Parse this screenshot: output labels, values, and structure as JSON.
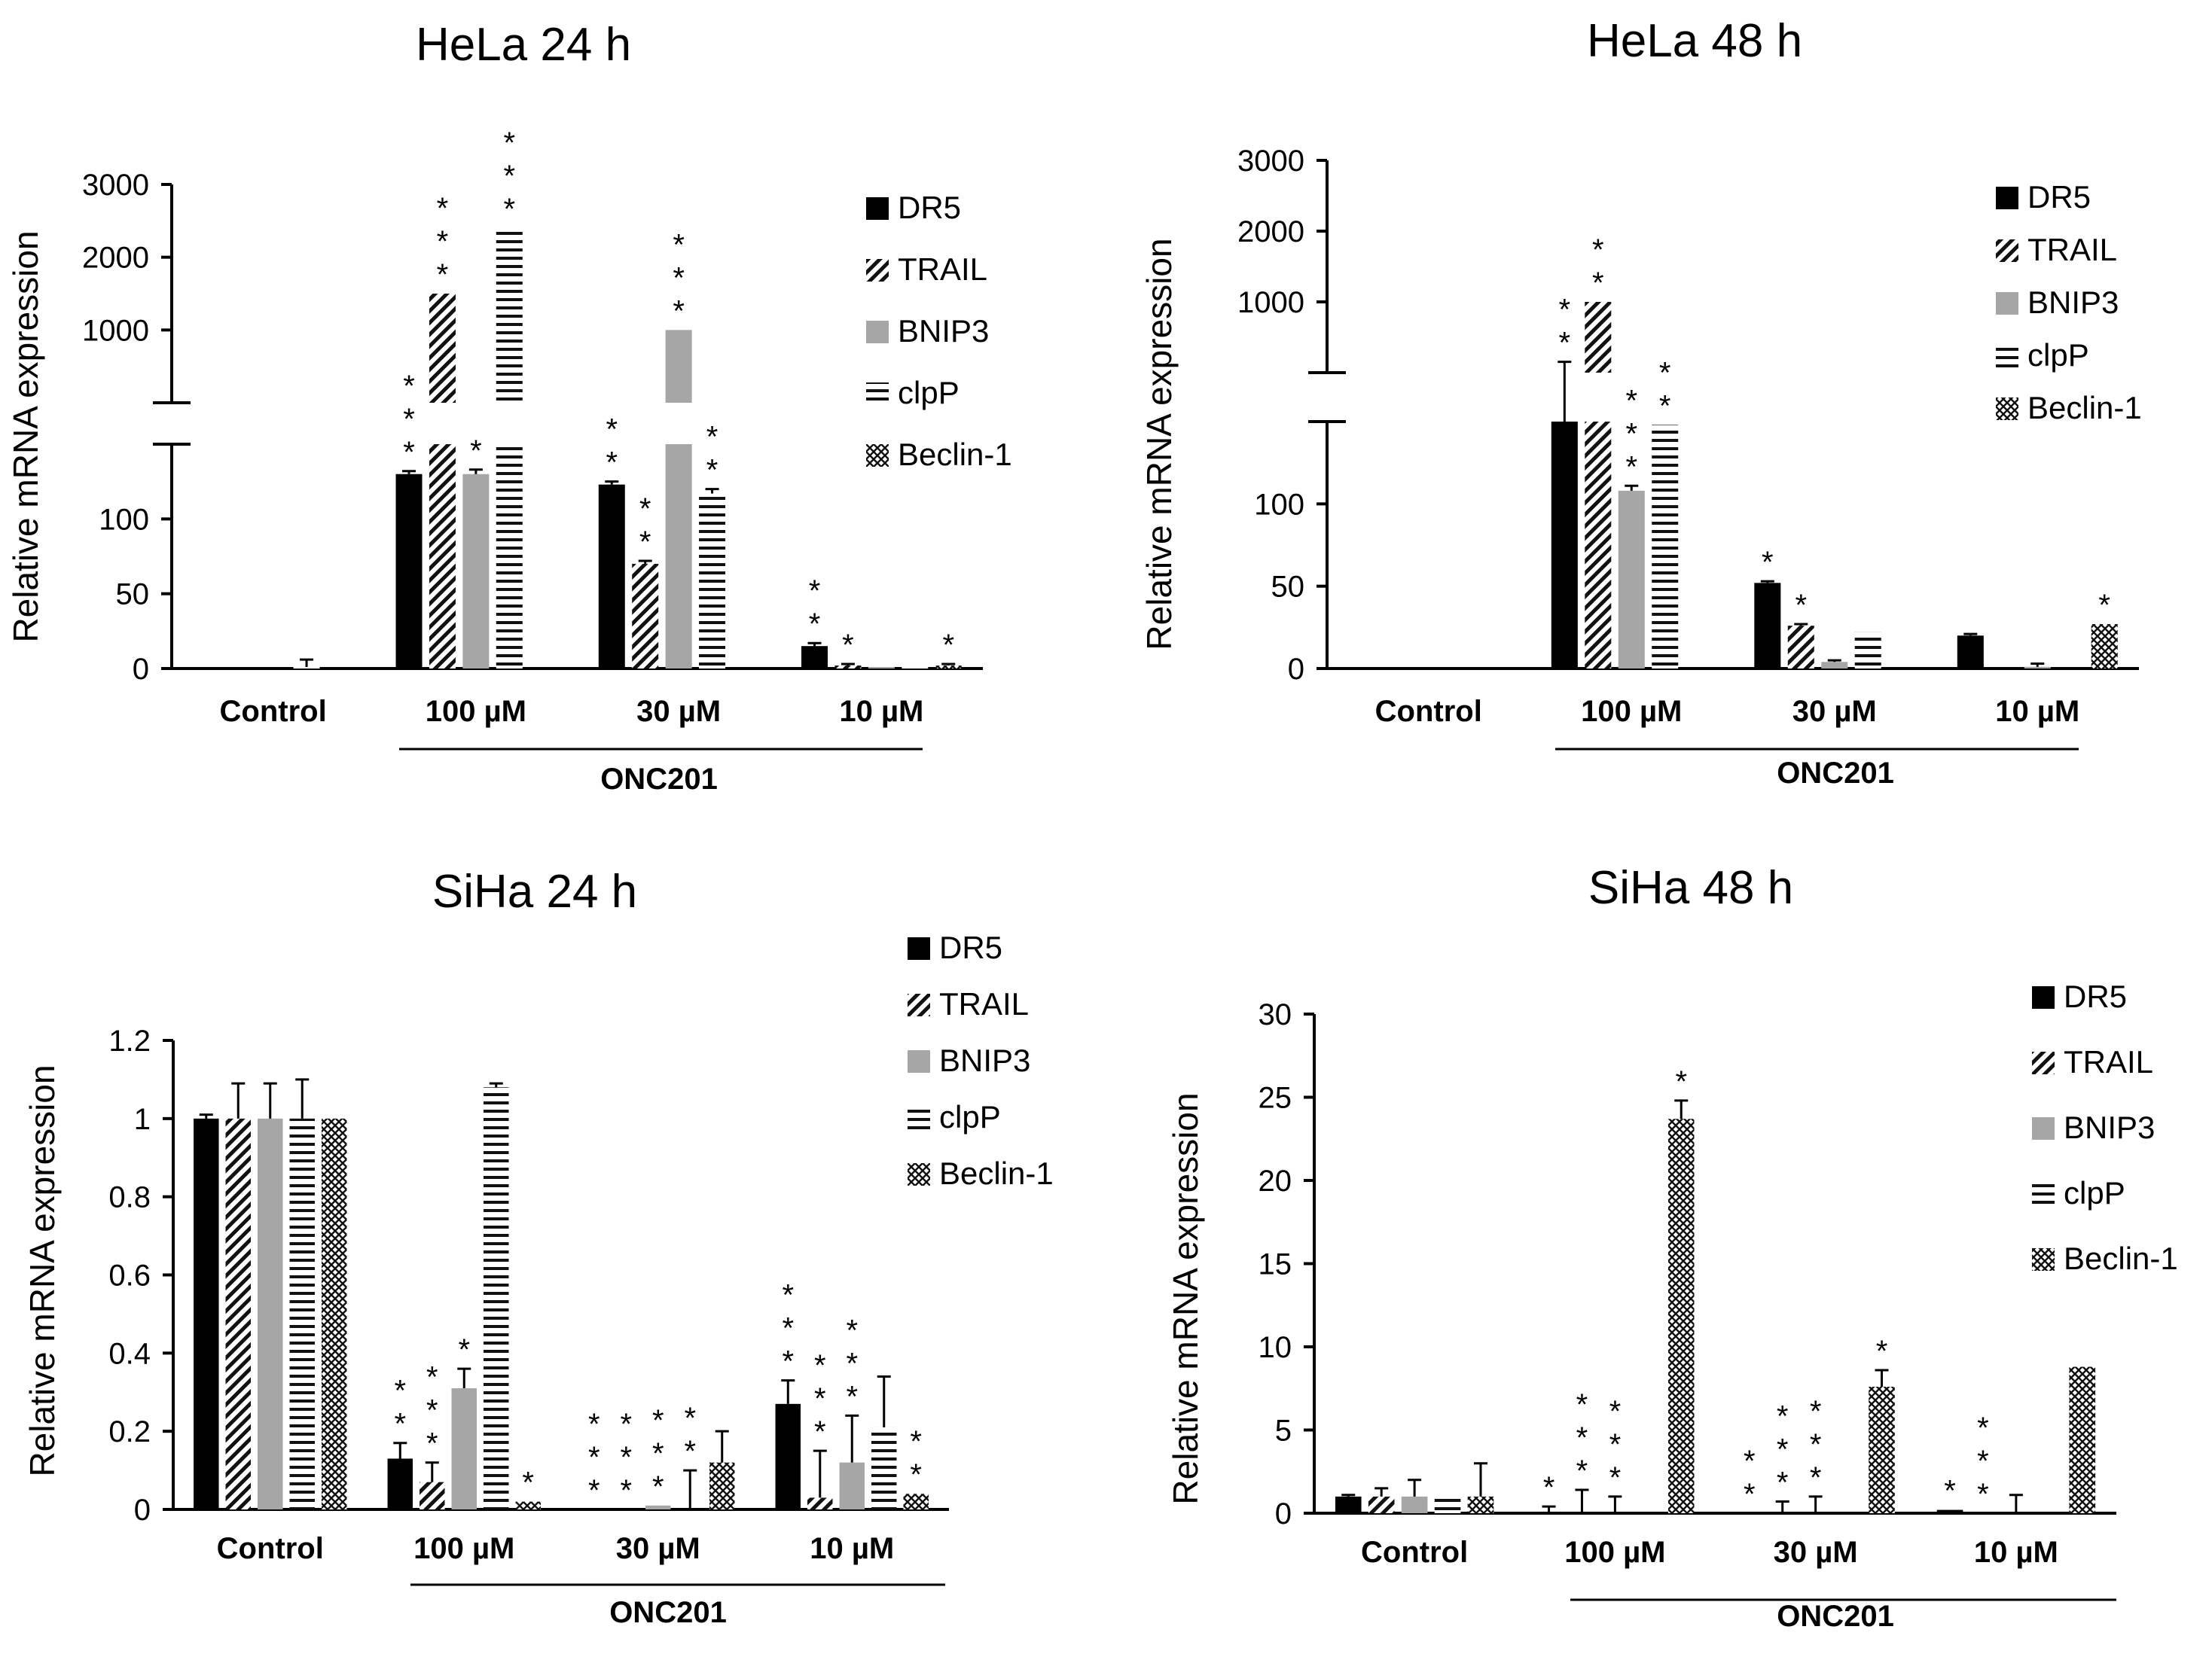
{
  "chart_data": [
    {
      "type": "bar",
      "title": "HeLa 24 h",
      "ylabel": "Relative mRNA expression",
      "xlabel": "",
      "broken_axis": true,
      "upper_ticks": [
        "1000",
        "2000",
        "3000"
      ],
      "lower_ticks": [
        "0",
        "50",
        "100"
      ],
      "categories": [
        "Control",
        "100 µM",
        "30 µM",
        "10 µM"
      ],
      "group_label": "ONC201",
      "series": [
        {
          "name": "DR5",
          "values": [
            1,
            130,
            123,
            15
          ],
          "errors": [
            0,
            2,
            2,
            2
          ],
          "stars": [
            0,
            3,
            2,
            2
          ]
        },
        {
          "name": "TRAIL",
          "values": [
            0,
            1500,
            70,
            2
          ],
          "errors": [
            0,
            0,
            2,
            1
          ],
          "stars": [
            0,
            3,
            2,
            1
          ]
        },
        {
          "name": "BNIP3",
          "values": [
            0,
            130,
            1000,
            1
          ],
          "errors": [
            0,
            3,
            0,
            0
          ],
          "stars": [
            0,
            1,
            3,
            0
          ]
        },
        {
          "name": "clpP",
          "values": [
            1,
            2400,
            117,
            1
          ],
          "errors": [
            5,
            0,
            3,
            0
          ],
          "stars": [
            0,
            3,
            2,
            0
          ]
        },
        {
          "name": "Beclin-1",
          "values": [
            0,
            0,
            0,
            2
          ],
          "errors": [
            0,
            0,
            0,
            1
          ],
          "stars": [
            0,
            0,
            0,
            1
          ]
        }
      ],
      "legend": [
        "DR5",
        "TRAIL",
        "BNIP3",
        "clpP",
        "Beclin-1"
      ],
      "legend_position": "right"
    },
    {
      "type": "bar",
      "title": "HeLa 48 h",
      "ylabel": "Relative mRNA expression",
      "xlabel": "",
      "broken_axis": true,
      "upper_ticks": [
        "1000",
        "2000",
        "3000"
      ],
      "lower_ticks": [
        "0",
        "50",
        "100"
      ],
      "categories": [
        "Control",
        "100 µM",
        "30 µM",
        "10 µM"
      ],
      "group_label": "ONC201",
      "series": [
        {
          "name": "DR5",
          "values": [
            0,
            150,
            52,
            20
          ],
          "errors": [
            0,
            3,
            1,
            1
          ],
          "stars": [
            0,
            2,
            1,
            0
          ]
        },
        {
          "name": "TRAIL",
          "values": [
            0,
            1000,
            26,
            0
          ],
          "errors": [
            0,
            0,
            1,
            0
          ],
          "stars": [
            0,
            2,
            1,
            0
          ]
        },
        {
          "name": "BNIP3",
          "values": [
            0,
            108,
            4,
            1
          ],
          "errors": [
            0,
            3,
            1,
            2
          ],
          "stars": [
            0,
            3,
            0,
            0
          ]
        },
        {
          "name": "clpP",
          "values": [
            0,
            148,
            22,
            0
          ],
          "errors": [
            0,
            0,
            0,
            0
          ],
          "stars": [
            0,
            2,
            0,
            0
          ]
        },
        {
          "name": "Beclin-1",
          "values": [
            0,
            0,
            0,
            27
          ],
          "errors": [
            0,
            0,
            0,
            0
          ],
          "stars": [
            0,
            0,
            0,
            1
          ]
        }
      ],
      "legend": [
        "DR5",
        "TRAIL",
        "BNIP3",
        "clpP",
        "Beclin-1"
      ],
      "legend_position": "right"
    },
    {
      "type": "bar",
      "title": "SiHa 24 h",
      "ylabel": "Relative mRNA expression",
      "xlabel": "",
      "ylim": [
        0,
        1.2
      ],
      "yticks": [
        "0",
        "0.2",
        "0.4",
        "0.6",
        "0.8",
        "1",
        "1.2"
      ],
      "categories": [
        "Control",
        "100 µM",
        "30 µM",
        "10 µM"
      ],
      "group_label": "ONC201",
      "series": [
        {
          "name": "DR5",
          "values": [
            1.0,
            0.13,
            0.0,
            0.27
          ],
          "errors": [
            0.01,
            0.04,
            0.0,
            0.06
          ],
          "stars": [
            0,
            2,
            3,
            3
          ]
        },
        {
          "name": "TRAIL",
          "values": [
            1.0,
            0.07,
            0.0,
            0.03
          ],
          "errors": [
            0.09,
            0.05,
            0.0,
            0.12
          ],
          "stars": [
            0,
            3,
            3,
            3
          ]
        },
        {
          "name": "BNIP3",
          "values": [
            1.0,
            0.31,
            0.01,
            0.12
          ],
          "errors": [
            0.09,
            0.05,
            0.0,
            0.12
          ],
          "stars": [
            0,
            1,
            3,
            3
          ]
        },
        {
          "name": "clpP",
          "values": [
            1.0,
            1.08,
            0.0,
            0.21
          ],
          "errors": [
            0.1,
            0.01,
            0.1,
            0.13
          ],
          "stars": [
            0,
            0,
            2,
            0
          ]
        },
        {
          "name": "Beclin-1",
          "values": [
            1.0,
            0.02,
            0.12,
            0.04
          ],
          "errors": [
            0.0,
            0.0,
            0.08,
            0.0
          ],
          "stars": [
            0,
            1,
            0,
            2
          ]
        }
      ],
      "legend": [
        "DR5",
        "TRAIL",
        "BNIP3",
        "clpP",
        "Beclin-1"
      ],
      "legend_position": "right"
    },
    {
      "type": "bar",
      "title": "SiHa 48 h",
      "ylabel": "Relative mRNA expression",
      "xlabel": "",
      "ylim": [
        0,
        30
      ],
      "yticks": [
        "0",
        "5",
        "10",
        "15",
        "20",
        "25",
        "30"
      ],
      "categories": [
        "Control",
        "100 µM",
        "30 µM",
        "10 µM"
      ],
      "group_label": "ONC201",
      "series": [
        {
          "name": "DR5",
          "values": [
            1.0,
            0.0,
            0.0,
            0.2
          ],
          "errors": [
            0.1,
            0.4,
            0.0,
            0.0
          ],
          "stars": [
            0,
            1,
            2,
            1
          ]
        },
        {
          "name": "TRAIL",
          "values": [
            1.0,
            0.0,
            0.0,
            0.0
          ],
          "errors": [
            0.5,
            1.4,
            0.7,
            0.0
          ],
          "stars": [
            0,
            3,
            3,
            3
          ]
        },
        {
          "name": "BNIP3",
          "values": [
            1.0,
            0.0,
            0.0,
            0.0
          ],
          "errors": [
            1.0,
            1.0,
            1.0,
            1.1
          ],
          "stars": [
            0,
            3,
            3,
            0
          ]
        },
        {
          "name": "clpP",
          "values": [
            1.0,
            0.0,
            0.0,
            0.0
          ],
          "errors": [
            0.0,
            0.0,
            0.0,
            0.0
          ],
          "stars": [
            0,
            0,
            0,
            0
          ]
        },
        {
          "name": "Beclin-1",
          "values": [
            1.0,
            23.7,
            7.6,
            8.8
          ],
          "errors": [
            2.0,
            1.1,
            1.0,
            0.0
          ],
          "stars": [
            0,
            1,
            1,
            0
          ]
        }
      ],
      "legend": [
        "DR5",
        "TRAIL",
        "BNIP3",
        "clpP",
        "Beclin-1"
      ],
      "legend_position": "right"
    }
  ]
}
